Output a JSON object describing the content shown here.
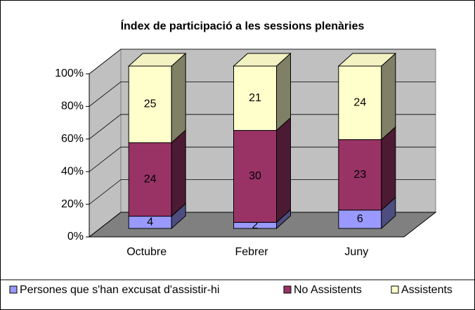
{
  "chart_data": {
    "type": "bar",
    "stacking": "percent",
    "title": "Índex de participació a les sessions plenàries",
    "categories": [
      "Octubre",
      "Febrer",
      "Juny"
    ],
    "series": [
      {
        "name": "Persones que s'han excusat d'assistir-hi",
        "color": "#9999ff",
        "values": [
          4,
          2,
          6
        ]
      },
      {
        "name": "No Assistents",
        "color": "#993366",
        "values": [
          24,
          30,
          23
        ]
      },
      {
        "name": "Assistents",
        "color": "#ffffcc",
        "values": [
          25,
          21,
          24
        ]
      }
    ],
    "ylim": [
      0,
      100
    ],
    "yticks": [
      {
        "value": 0,
        "label": "0%"
      },
      {
        "value": 20,
        "label": "20%"
      },
      {
        "value": 40,
        "label": "40%"
      },
      {
        "value": 60,
        "label": "60%"
      },
      {
        "value": 80,
        "label": "80%"
      },
      {
        "value": 100,
        "label": "100%"
      }
    ],
    "grid": true,
    "legend": "bottom"
  }
}
